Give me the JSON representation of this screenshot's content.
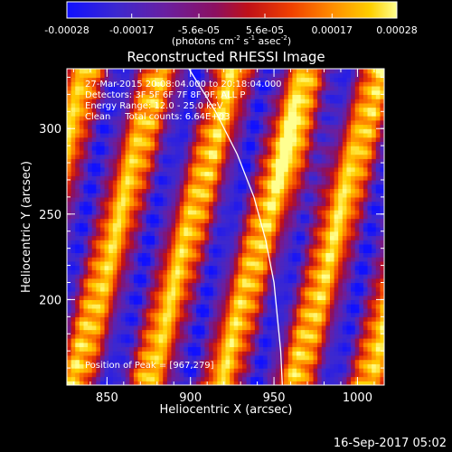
{
  "chart_data": {
    "type": "heatmap",
    "title": "Reconstructed RHESSI Image",
    "xlabel": "Heliocentric X (arcsec)",
    "ylabel": "Heliocentric Y (arcsec)",
    "xlim": [
      826,
      1016
    ],
    "ylim": [
      150,
      335
    ],
    "x_ticks": [
      "850",
      "900",
      "950",
      "1000"
    ],
    "x_tick_values": [
      850,
      900,
      950,
      1000
    ],
    "y_ticks": [
      "200",
      "250",
      "300"
    ],
    "y_tick_values": [
      200,
      250,
      300
    ],
    "colorbar": {
      "min": -0.00028,
      "max": 0.00028,
      "tick_labels": [
        "-0.00028",
        "-0.00017",
        "-5.6e-05",
        "5.6e-05",
        "0.00017",
        "0.00028"
      ],
      "tick_values": [
        -0.00028,
        -0.00017,
        -5.6e-05,
        5.6e-05,
        0.00017,
        0.00028
      ],
      "units_prefix": "(photons cm",
      "units_sup1": "-2",
      "units_mid": " s",
      "units_sup2": "-1",
      "units_suffix": " asec",
      "units_sup3": "-2",
      "units_close": ")"
    },
    "annotations": {
      "time": "27-Mar-2015 20:08:04.000 to 20:18:04.000",
      "detectors": "Detectors: 3F 5F 6F 7F 8F 9F, ALL P",
      "energy": "Energy Range: 12.0 - 25.0 keV",
      "algorithm": "Clean     Total counts: 6.64E+03",
      "peak": "Position of Peak = [967,279]"
    },
    "peak": [
      967,
      279
    ],
    "limb_curve": [
      [
        899,
        335
      ],
      [
        915,
        310
      ],
      [
        928,
        285
      ],
      [
        938,
        260
      ],
      [
        945,
        235
      ],
      [
        950,
        210
      ],
      [
        952,
        190
      ],
      [
        954,
        170
      ],
      [
        955,
        150
      ]
    ],
    "pattern": {
      "description": "diagonal stripe pattern",
      "bright_ridge_x_at_y150": [
        873,
        917,
        962,
        1006
      ],
      "ridge_slope_x_per_y": 0.28
    }
  },
  "footer": {
    "timestamp": "16-Sep-2017 05:02"
  }
}
